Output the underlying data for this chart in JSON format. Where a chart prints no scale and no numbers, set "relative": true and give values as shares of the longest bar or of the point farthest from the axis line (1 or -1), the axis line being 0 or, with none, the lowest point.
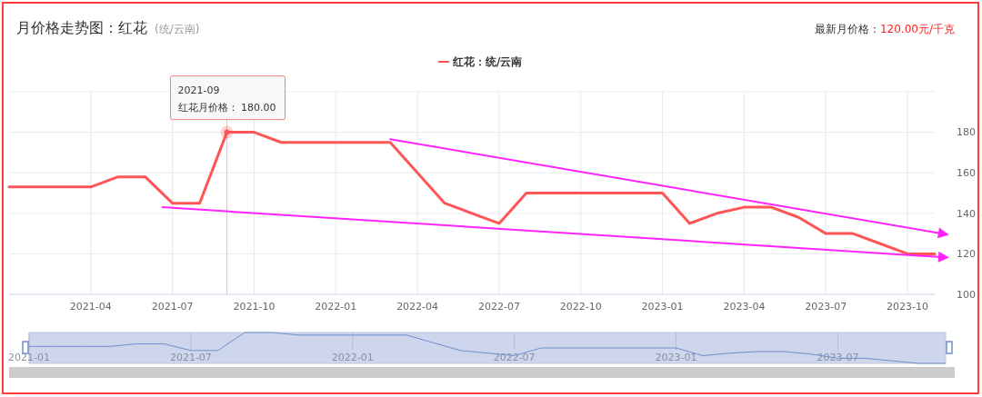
{
  "chart_data": [
    {
      "type": "line",
      "title": "月价格走势图：红花",
      "subtitle": "(统/云南)",
      "annotations": [
        "最新月价格：",
        "120.00元/千克",
        {
          "text": "2021-09\n红花月价格：  180.00",
          "x": "2021-09",
          "y": 180
        }
      ],
      "x": [
        "2021-01",
        "2021-02",
        "2021-03",
        "2021-04",
        "2021-05",
        "2021-06",
        "2021-07",
        "2021-08",
        "2021-09",
        "2021-10",
        "2021-11",
        "2021-12",
        "2022-01",
        "2022-02",
        "2022-03",
        "2022-04",
        "2022-05",
        "2022-06",
        "2022-07",
        "2022-08",
        "2022-09",
        "2022-10",
        "2022-11",
        "2022-12",
        "2023-01",
        "2023-02",
        "2023-03",
        "2023-04",
        "2023-05",
        "2023-06",
        "2023-07",
        "2023-08",
        "2023-09",
        "2023-10",
        "2023-11"
      ],
      "series": [
        {
          "name": "红花：统/云南",
          "color": "#ff5555",
          "values": [
            153,
            153,
            153,
            153,
            158,
            158,
            145,
            145,
            180,
            180,
            175,
            175,
            175,
            175,
            175,
            160,
            145,
            140,
            135,
            150,
            150,
            150,
            150,
            150,
            150,
            135,
            140,
            143,
            143,
            138,
            130,
            130,
            125,
            120,
            120
          ]
        },
        {
          "color": "#ff22ff",
          "x": [
            "2022-03",
            "2023-11"
          ],
          "values": [
            176.6,
            130.6
          ]
        },
        {
          "color": "#ff22ff",
          "x": [
            "2021-06-20",
            "2023-11"
          ],
          "values": [
            143,
            118.6
          ]
        }
      ],
      "xlim": [
        "2021-01",
        "2023-11"
      ],
      "xticks": [
        {
          "value": "2021-04",
          "label": "2021-04"
        },
        {
          "value": "2021-07",
          "label": "2021-07"
        },
        {
          "value": "2021-10",
          "label": "2021-10"
        },
        {
          "value": "2022-01",
          "label": "2022-01"
        },
        {
          "value": "2022-04",
          "label": "2022-04"
        },
        {
          "value": "2022-07",
          "label": "2022-07"
        },
        {
          "value": "2022-10",
          "label": "2022-10"
        },
        {
          "value": "2023-01",
          "label": "2023-01"
        },
        {
          "value": "2023-04",
          "label": "2023-04"
        },
        {
          "value": "2023-07",
          "label": "2023-07"
        },
        {
          "value": "2023-10",
          "label": "2023-10"
        }
      ],
      "ref_lines": [
        {
          "axis": "x",
          "value": "2021-09",
          "color": "#cccccc"
        }
      ],
      "ylim": [
        100,
        200
      ],
      "yticks": [
        100,
        120,
        140,
        160,
        180,
        {
          "value": 200,
          "label": null
        }
      ],
      "grid": true,
      "legend": "top"
    },
    {
      "type": "line",
      "relative": true,
      "x": [
        "2021-01",
        "2021-02",
        "2021-03",
        "2021-04",
        "2021-05",
        "2021-06",
        "2021-07",
        "2021-08",
        "2021-09",
        "2021-10",
        "2021-11",
        "2021-12",
        "2022-01",
        "2022-02",
        "2022-03",
        "2022-04",
        "2022-05",
        "2022-06",
        "2022-07",
        "2022-08",
        "2022-09",
        "2022-10",
        "2022-11",
        "2022-12",
        "2023-01",
        "2023-02",
        "2023-03",
        "2023-04",
        "2023-05",
        "2023-06",
        "2023-07",
        "2023-08",
        "2023-09",
        "2023-10",
        "2023-11"
      ],
      "series": [
        {
          "color": "#6f8fcf",
          "values": [
            0.55,
            0.55,
            0.55,
            0.55,
            0.633,
            0.633,
            0.417,
            0.417,
            1,
            1,
            0.917,
            0.917,
            0.917,
            0.917,
            0.917,
            0.667,
            0.417,
            0.333,
            0.25,
            0.5,
            0.5,
            0.5,
            0.5,
            0.5,
            0.5,
            0.25,
            0.333,
            0.383,
            0.383,
            0.3,
            0.167,
            0.167,
            0.083,
            0,
            0
          ]
        }
      ],
      "xlim": [
        "2021-01",
        "2023-11"
      ],
      "xticks": [
        {
          "value": "2021-01",
          "label": "2021-01"
        },
        {
          "value": "2021-07",
          "label": "2021-07"
        },
        {
          "value": "2022-01",
          "label": "2022-01"
        },
        {
          "value": "2022-07",
          "label": "2022-07"
        },
        {
          "value": "2023-01",
          "label": "2023-01"
        },
        {
          "value": "2023-07",
          "label": "2023-07"
        }
      ],
      "tick_labels": "x",
      "grid": "x"
    }
  ]
}
